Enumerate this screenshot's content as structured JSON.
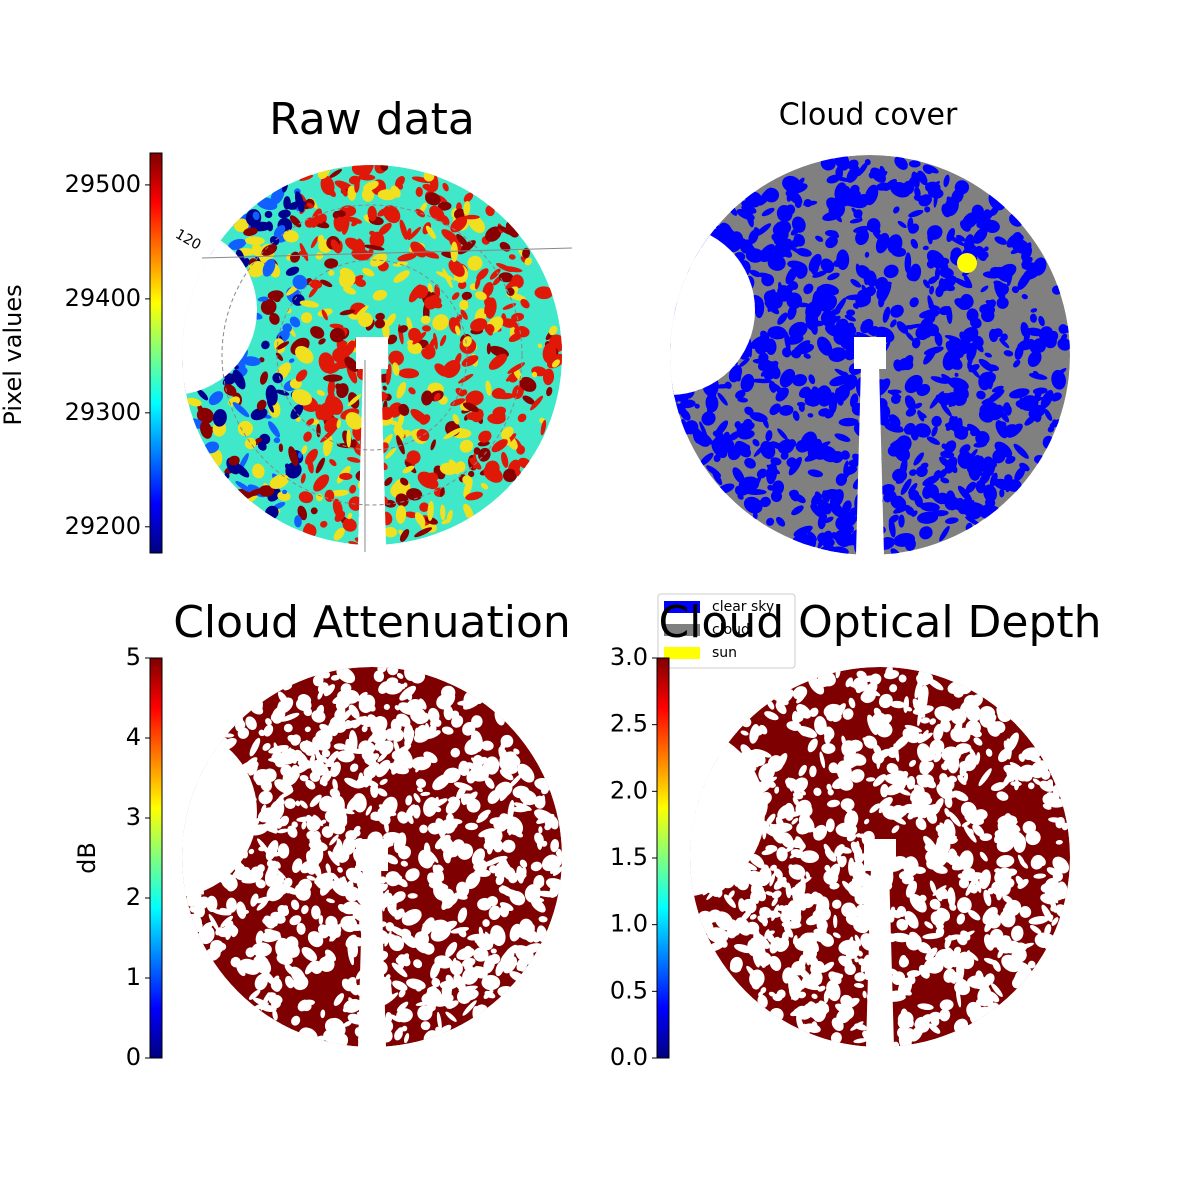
{
  "chart_data": [
    {
      "type": "image",
      "title": "Raw data",
      "ylabel": "Pixel values",
      "ylim": [
        29177,
        29528
      ],
      "yticks": [
        29200,
        29300,
        29400,
        29500
      ],
      "colormap": "jet",
      "annotations": [
        "120"
      ]
    },
    {
      "type": "categorical-image",
      "title": "Cloud cover",
      "series": [
        {
          "name": "clear sky",
          "color": "#0000ff"
        },
        {
          "name": "cloud",
          "color": "#808080"
        },
        {
          "name": "sun",
          "color": "#ffff00"
        }
      ]
    },
    {
      "type": "image",
      "title": "Cloud Attenuation",
      "ylabel": "dB",
      "ylim": [
        0,
        5
      ],
      "yticks": [
        0,
        1,
        2,
        3,
        4,
        5
      ],
      "colormap": "jet"
    },
    {
      "type": "image",
      "title": "Cloud Optical Depth",
      "ylim": [
        0,
        3
      ],
      "yticks": [
        {
          "value": 0,
          "label": "0.0"
        },
        0.5,
        {
          "value": 1,
          "label": "1.0"
        },
        1.5,
        {
          "value": 2,
          "label": "2.0"
        },
        2.5,
        {
          "value": 3,
          "label": "3.0"
        }
      ],
      "colormap": "jet"
    }
  ]
}
